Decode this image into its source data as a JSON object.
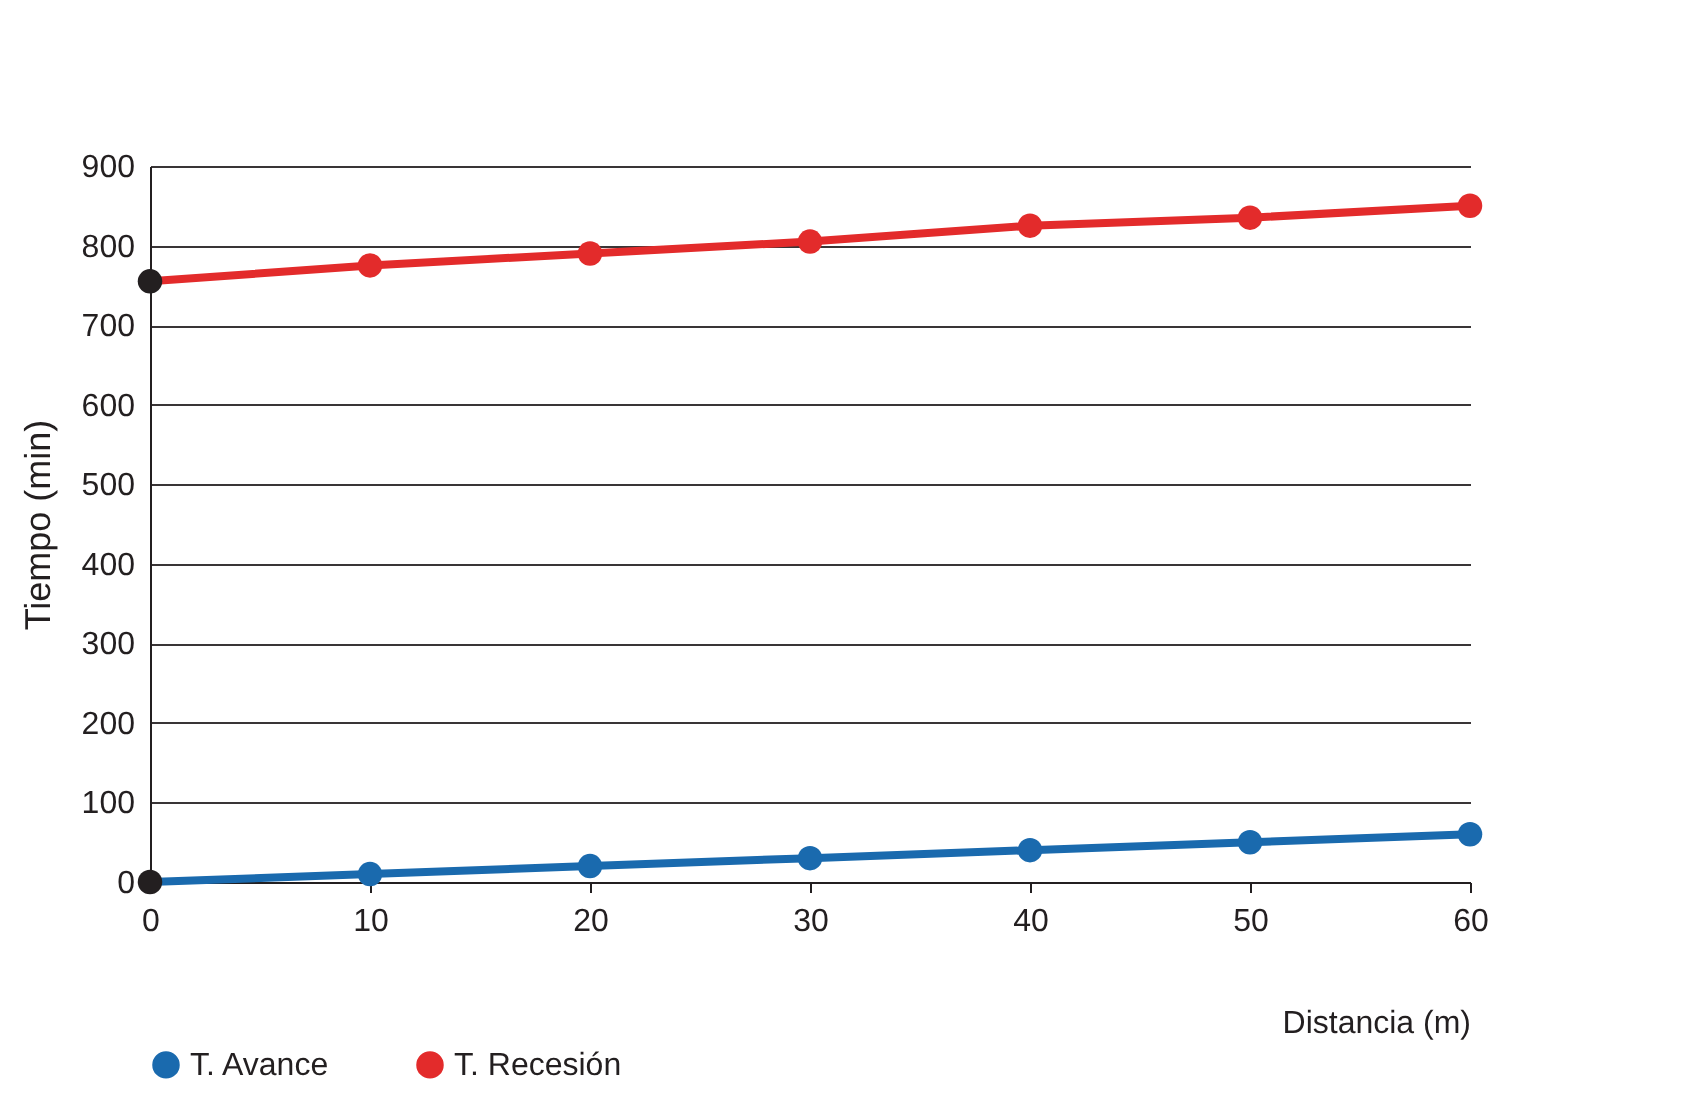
{
  "chart_data": {
    "type": "line",
    "xlabel": "Distancia (m)",
    "ylabel": "Tiempo  (min)",
    "x": [
      0,
      10,
      20,
      30,
      40,
      50,
      60
    ],
    "series": [
      {
        "name": "T. Avance",
        "color": "#1a6aae",
        "values": [
          0,
          10,
          20,
          30,
          40,
          50,
          60
        ],
        "colors": [
          "#231f20",
          "#1a6aae",
          "#1a6aae",
          "#1a6aae",
          "#1a6aae",
          "#1a6aae",
          "#1a6aae"
        ]
      },
      {
        "name": "T. Recesión",
        "color": "#e32b2b",
        "values": [
          755,
          775,
          790,
          805,
          825,
          835,
          850
        ],
        "colors": [
          "#231f20",
          "#e32b2b",
          "#e32b2b",
          "#e32b2b",
          "#e32b2b",
          "#e32b2b",
          "#e32b2b"
        ]
      }
    ],
    "xlim": [
      0,
      60
    ],
    "xticks": [
      0,
      10,
      20,
      30,
      40,
      50,
      60
    ],
    "ylim": [
      0,
      900
    ],
    "yticks": [
      0,
      100,
      200,
      300,
      400,
      500,
      600,
      700,
      800,
      900
    ],
    "grid": "y",
    "legend": "bottom",
    "marker": "circle",
    "line_style": "solid"
  }
}
